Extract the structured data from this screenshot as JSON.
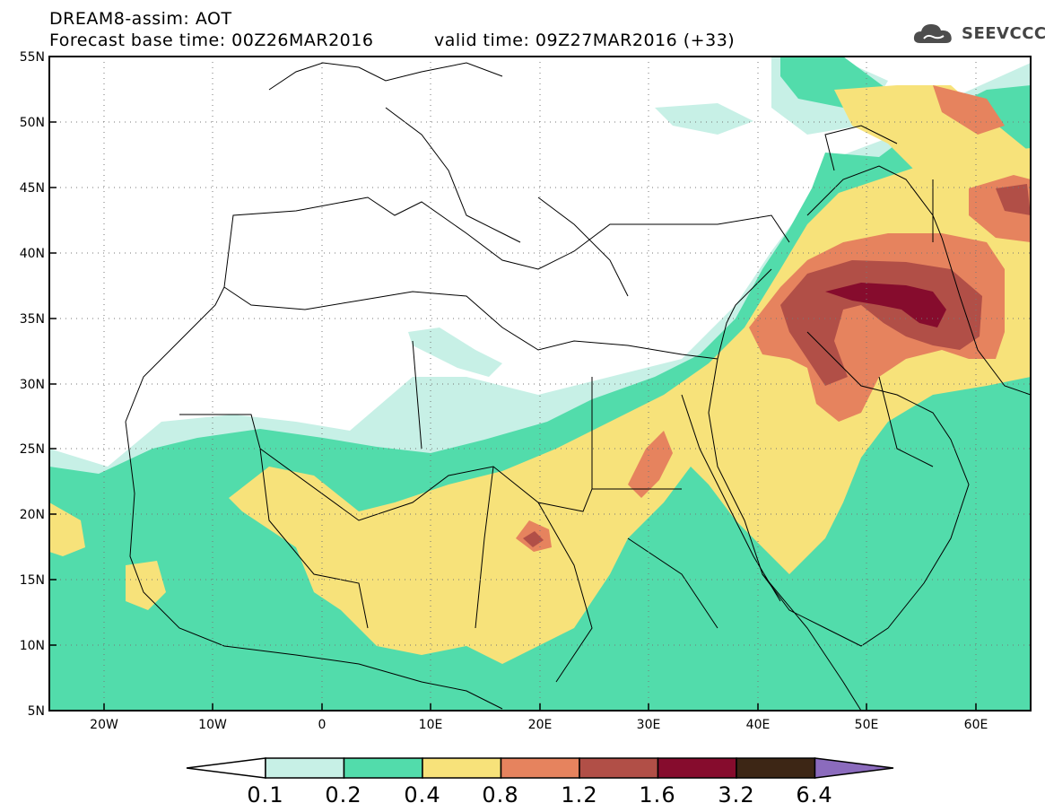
{
  "header": {
    "line1": "DREAM8-assim: AOT",
    "line2": "Forecast base time: 00Z26MAR2016",
    "line3": "valid time: 09Z27MAR2016 (+33)",
    "logo_text": "SEEVCCC",
    "logo_icon": "cloud-icon"
  },
  "axes": {
    "lat_labels": [
      "55N",
      "50N",
      "45N",
      "40N",
      "35N",
      "30N",
      "25N",
      "20N",
      "15N",
      "10N",
      "5N"
    ],
    "lon_labels": [
      "20W",
      "10W",
      "0",
      "10E",
      "20E",
      "30E",
      "40E",
      "50E",
      "60E"
    ],
    "lon_range": [
      -25,
      65
    ],
    "lat_range": [
      5,
      55
    ]
  },
  "colorbar": {
    "labels": [
      "0.1",
      "0.2",
      "0.4",
      "0.8",
      "1.2",
      "1.6",
      "3.2",
      "6.4"
    ],
    "colors": [
      "#c7f0e6",
      "#52dcab",
      "#f7e27a",
      "#e6835e",
      "#b14f47",
      "#860c2d",
      "#3d2615",
      "#8b6bbd"
    ],
    "under_color": "#ffffff"
  }
}
